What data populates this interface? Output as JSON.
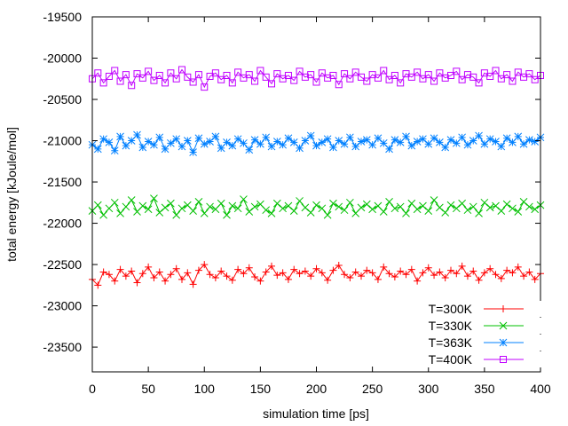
{
  "chart_data": {
    "type": "line",
    "xlabel": "simulation time [ps]",
    "ylabel": "total energy [kJoule/mol]",
    "xlim": [
      0,
      400
    ],
    "ylim": [
      -23800,
      -19500
    ],
    "xticks": [
      0,
      50,
      100,
      150,
      200,
      250,
      300,
      350,
      400
    ],
    "yticks": [
      -23500,
      -23000,
      -22500,
      -22000,
      -21500,
      -21000,
      -20500,
      -20000,
      -19500
    ],
    "grid": false,
    "legend_placement": "bottom-right",
    "x": [
      0,
      5,
      10,
      15,
      20,
      25,
      30,
      35,
      40,
      45,
      50,
      55,
      60,
      65,
      70,
      75,
      80,
      85,
      90,
      95,
      100,
      105,
      110,
      115,
      120,
      125,
      130,
      135,
      140,
      145,
      150,
      155,
      160,
      165,
      170,
      175,
      180,
      185,
      190,
      195,
      200,
      205,
      210,
      215,
      220,
      225,
      230,
      235,
      240,
      245,
      250,
      255,
      260,
      265,
      270,
      275,
      280,
      285,
      290,
      295,
      300,
      305,
      310,
      315,
      320,
      325,
      330,
      335,
      340,
      345,
      350,
      355,
      360,
      365,
      370,
      375,
      380,
      385,
      390,
      395,
      400
    ],
    "series": [
      {
        "name": "T=300K",
        "color": "#ff0000",
        "marker": "plus",
        "values": [
          -22680,
          -22750,
          -22590,
          -22620,
          -22700,
          -22560,
          -22640,
          -22580,
          -22720,
          -22610,
          -22530,
          -22660,
          -22590,
          -22700,
          -22620,
          -22550,
          -22680,
          -22600,
          -22740,
          -22570,
          -22500,
          -22620,
          -22660,
          -22580,
          -22640,
          -22690,
          -22560,
          -22610,
          -22540,
          -22650,
          -22700,
          -22590,
          -22520,
          -22630,
          -22600,
          -22680,
          -22560,
          -22610,
          -22580,
          -22640,
          -22550,
          -22600,
          -22690,
          -22570,
          -22510,
          -22620,
          -22660,
          -22590,
          -22640,
          -22570,
          -22600,
          -22680,
          -22530,
          -22610,
          -22650,
          -22580,
          -22620,
          -22560,
          -22700,
          -22600,
          -22540,
          -22630,
          -22590,
          -22660,
          -22570,
          -22610,
          -22520,
          -22640,
          -22580,
          -22690,
          -22600,
          -22550,
          -22620,
          -22670,
          -22570,
          -22600,
          -22530,
          -22640,
          -22590,
          -22680,
          -22610
        ]
      },
      {
        "name": "T=330K",
        "color": "#00c000",
        "marker": "cross",
        "values": [
          -21850,
          -21780,
          -21900,
          -21820,
          -21750,
          -21880,
          -21800,
          -21720,
          -21860,
          -21790,
          -21830,
          -21700,
          -21870,
          -21810,
          -21760,
          -21900,
          -21820,
          -21780,
          -21850,
          -21740,
          -21880,
          -21800,
          -21830,
          -21760,
          -21900,
          -21790,
          -21820,
          -21710,
          -21860,
          -21800,
          -21770,
          -21840,
          -21880,
          -21760,
          -21820,
          -21790,
          -21850,
          -21730,
          -21810,
          -21870,
          -21780,
          -21820,
          -21900,
          -21760,
          -21800,
          -21840,
          -21750,
          -21880,
          -21810,
          -21770,
          -21830,
          -21790,
          -21860,
          -21740,
          -21820,
          -21800,
          -21880,
          -21760,
          -21830,
          -21790,
          -21850,
          -21720,
          -21810,
          -21870,
          -21780,
          -21820,
          -21760,
          -21840,
          -21800,
          -21880,
          -21750,
          -21810,
          -21790,
          -21850,
          -21770,
          -21820,
          -21860,
          -21740,
          -21800,
          -21830,
          -21780
        ]
      },
      {
        "name": "T=363K",
        "color": "#0080ff",
        "marker": "star",
        "values": [
          -21050,
          -21100,
          -20980,
          -21020,
          -21120,
          -20950,
          -21060,
          -21000,
          -20930,
          -21080,
          -21010,
          -21050,
          -20960,
          -21100,
          -21030,
          -20980,
          -21070,
          -21000,
          -21140,
          -20970,
          -21040,
          -21010,
          -20950,
          -21090,
          -21020,
          -21060,
          -20980,
          -21030,
          -21110,
          -20990,
          -21040,
          -20960,
          -21070,
          -21010,
          -21050,
          -20970,
          -21020,
          -21090,
          -21000,
          -20940,
          -21060,
          -21020,
          -20980,
          -21080,
          -21000,
          -21040,
          -20960,
          -21070,
          -21010,
          -20990,
          -21050,
          -20970,
          -21030,
          -21100,
          -20990,
          -21020,
          -20950,
          -21060,
          -21010,
          -20980,
          -21040,
          -20970,
          -21020,
          -21080,
          -20990,
          -21030,
          -20960,
          -21050,
          -21000,
          -20940,
          -21040,
          -20980,
          -21010,
          -21070,
          -20970,
          -21020,
          -20950,
          -21040,
          -20990,
          -21010,
          -20960
        ]
      },
      {
        "name": "T=400K",
        "color": "#c000ff",
        "marker": "square",
        "values": [
          -20250,
          -20180,
          -20300,
          -20220,
          -20150,
          -20280,
          -20200,
          -20330,
          -20190,
          -20240,
          -20160,
          -20270,
          -20210,
          -20300,
          -20180,
          -20250,
          -20140,
          -20230,
          -20290,
          -20200,
          -20350,
          -20220,
          -20180,
          -20260,
          -20210,
          -20300,
          -20170,
          -20240,
          -20200,
          -20280,
          -20150,
          -20230,
          -20310,
          -20190,
          -20250,
          -20210,
          -20270,
          -20160,
          -20230,
          -20200,
          -20290,
          -20180,
          -20240,
          -20210,
          -20320,
          -20190,
          -20250,
          -20170,
          -20230,
          -20280,
          -20200,
          -20240,
          -20150,
          -20260,
          -20210,
          -20300,
          -20190,
          -20230,
          -20170,
          -20250,
          -20200,
          -20280,
          -20180,
          -20240,
          -20210,
          -20160,
          -20260,
          -20200,
          -20230,
          -20300,
          -20180,
          -20220,
          -20150,
          -20250,
          -20200,
          -20280,
          -20170,
          -20230,
          -20190,
          -20260,
          -20210
        ]
      }
    ]
  }
}
